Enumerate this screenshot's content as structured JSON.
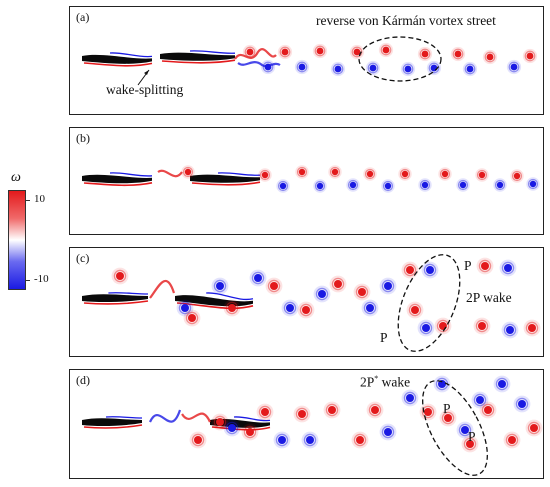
{
  "colorbar": {
    "title": "ω",
    "max_label": "10",
    "min_label": "-10",
    "colors": {
      "positive": "#e31a1c",
      "zero": "#ffffff",
      "negative": "#1a1ae3"
    }
  },
  "panels": [
    {
      "label": "(a)",
      "annotations": {
        "vortex_street": "reverse von Kármán vortex street",
        "wake_splitting": "wake-splitting"
      }
    },
    {
      "label": "(b)"
    },
    {
      "label": "(c)",
      "annotations": {
        "wake": "2P wake",
        "p1": "P",
        "p2": "P"
      }
    },
    {
      "label": "(d)",
      "annotations": {
        "wake_prefix": "2P",
        "wake_sup": "*",
        "wake_suffix": " wake",
        "p1": "P",
        "p2": "P"
      }
    }
  ]
}
